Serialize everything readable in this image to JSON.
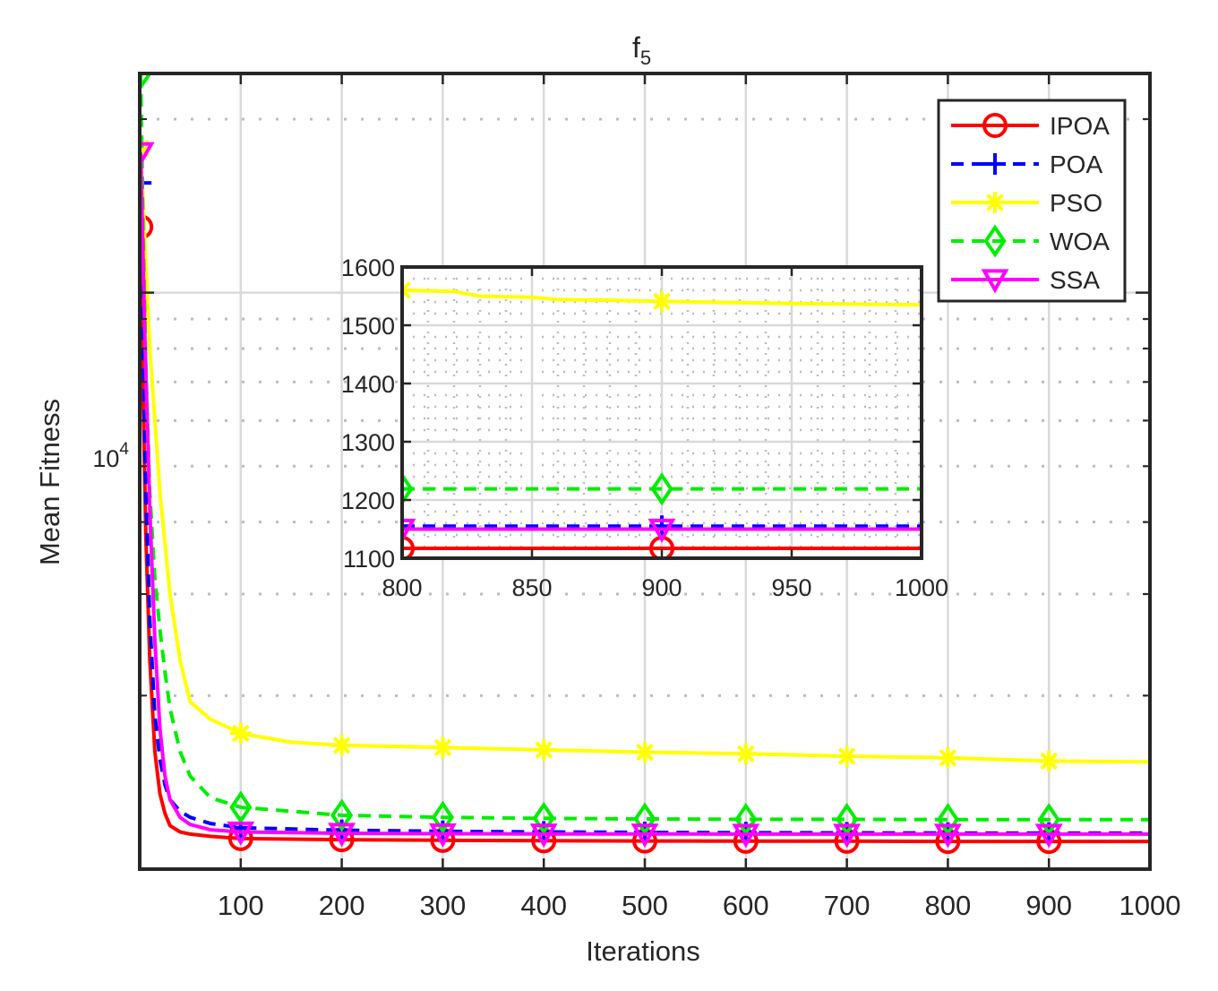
{
  "chart_data": {
    "type": "line",
    "title": "f",
    "title_subscript": "5",
    "xlabel": "Iterations",
    "ylabel": "Mean Fitness",
    "yscale": "log",
    "xlim": [
      0,
      1000
    ],
    "ylim": [
      1000,
      24000
    ],
    "xticks": [
      "100",
      "200",
      "300",
      "400",
      "500",
      "600",
      "700",
      "800",
      "900",
      "1000"
    ],
    "y_labeled_tick": {
      "base": "10",
      "exponent": "4",
      "value": 10000
    },
    "grid": true,
    "legend_position": "top-right",
    "marker_x": [
      100,
      200,
      300,
      400,
      500,
      600,
      700,
      800,
      900
    ],
    "series": [
      {
        "name": "IPOA",
        "color": "#ff0000",
        "dash": "solid",
        "marker": "circle",
        "x": [
          1,
          3,
          6,
          10,
          15,
          20,
          25,
          30,
          40,
          50,
          70,
          100,
          200,
          300,
          400,
          500,
          600,
          700,
          800,
          900,
          1000
        ],
        "y": [
          13000,
          7200,
          3800,
          2300,
          1600,
          1350,
          1250,
          1190,
          1160,
          1150,
          1140,
          1130,
          1125,
          1122,
          1120,
          1119,
          1118,
          1118,
          1117,
          1117,
          1117
        ]
      },
      {
        "name": "POA",
        "color": "#0000ff",
        "dash": "dashed",
        "marker": "plus",
        "x": [
          1,
          3,
          6,
          10,
          15,
          20,
          25,
          30,
          40,
          50,
          70,
          100,
          200,
          300,
          400,
          500,
          600,
          700,
          800,
          900,
          1000
        ],
        "y": [
          15500,
          8500,
          4500,
          2700,
          1850,
          1550,
          1400,
          1320,
          1260,
          1230,
          1200,
          1180,
          1168,
          1163,
          1160,
          1158,
          1157,
          1156,
          1155,
          1155,
          1155
        ]
      },
      {
        "name": "PSO",
        "color": "#ffff00",
        "dash": "solid",
        "marker": "asterisk",
        "x": [
          1,
          5,
          10,
          20,
          30,
          40,
          50,
          70,
          100,
          150,
          200,
          300,
          400,
          500,
          600,
          700,
          800,
          900,
          1000
        ],
        "y": [
          17800,
          12500,
          8000,
          4500,
          3000,
          2300,
          1950,
          1820,
          1720,
          1660,
          1640,
          1625,
          1610,
          1595,
          1585,
          1570,
          1560,
          1540,
          1535
        ]
      },
      {
        "name": "WOA",
        "color": "#00ee00",
        "dash": "dashed",
        "marker": "diamond",
        "x": [
          1,
          3,
          6,
          10,
          15,
          20,
          25,
          30,
          40,
          50,
          70,
          100,
          200,
          300,
          400,
          500,
          600,
          700,
          800,
          900,
          1000
        ],
        "y": [
          24000,
          14000,
          7500,
          4500,
          3200,
          2600,
          2200,
          1900,
          1600,
          1450,
          1330,
          1280,
          1240,
          1230,
          1225,
          1222,
          1220,
          1220,
          1219,
          1219,
          1219
        ]
      },
      {
        "name": "SSA",
        "color": "#ff00ff",
        "dash": "solid",
        "marker": "triangle-down",
        "x": [
          1,
          5,
          10,
          15,
          20,
          25,
          30,
          40,
          50,
          70,
          100,
          200,
          300,
          400,
          500,
          600,
          700,
          800,
          900,
          1000
        ],
        "y": [
          17500,
          8600,
          4200,
          2500,
          1750,
          1450,
          1320,
          1230,
          1195,
          1170,
          1160,
          1154,
          1152,
          1151,
          1151,
          1150,
          1150,
          1150,
          1150,
          1150
        ]
      }
    ],
    "inset": {
      "xlim": [
        800,
        1000
      ],
      "ylim": [
        1100,
        1600
      ],
      "xticks": [
        "800",
        "850",
        "900",
        "950",
        "1000"
      ],
      "yticks": [
        "1100",
        "1200",
        "1300",
        "1400",
        "1500",
        "1600"
      ],
      "marker_x": [
        800,
        900
      ],
      "series": [
        {
          "name": "IPOA",
          "x": [
            800,
            1000
          ],
          "y": [
            1117,
            1117
          ]
        },
        {
          "name": "POA",
          "x": [
            800,
            1000
          ],
          "y": [
            1155,
            1155
          ]
        },
        {
          "name": "PSO",
          "x": [
            800,
            820,
            830,
            850,
            860,
            880,
            900,
            940,
            1000
          ],
          "y": [
            1560,
            1558,
            1550,
            1548,
            1544,
            1543,
            1541,
            1538,
            1535
          ]
        },
        {
          "name": "WOA",
          "x": [
            800,
            1000
          ],
          "y": [
            1219,
            1219
          ]
        },
        {
          "name": "SSA",
          "x": [
            800,
            1000
          ],
          "y": [
            1150,
            1150
          ]
        }
      ]
    }
  }
}
